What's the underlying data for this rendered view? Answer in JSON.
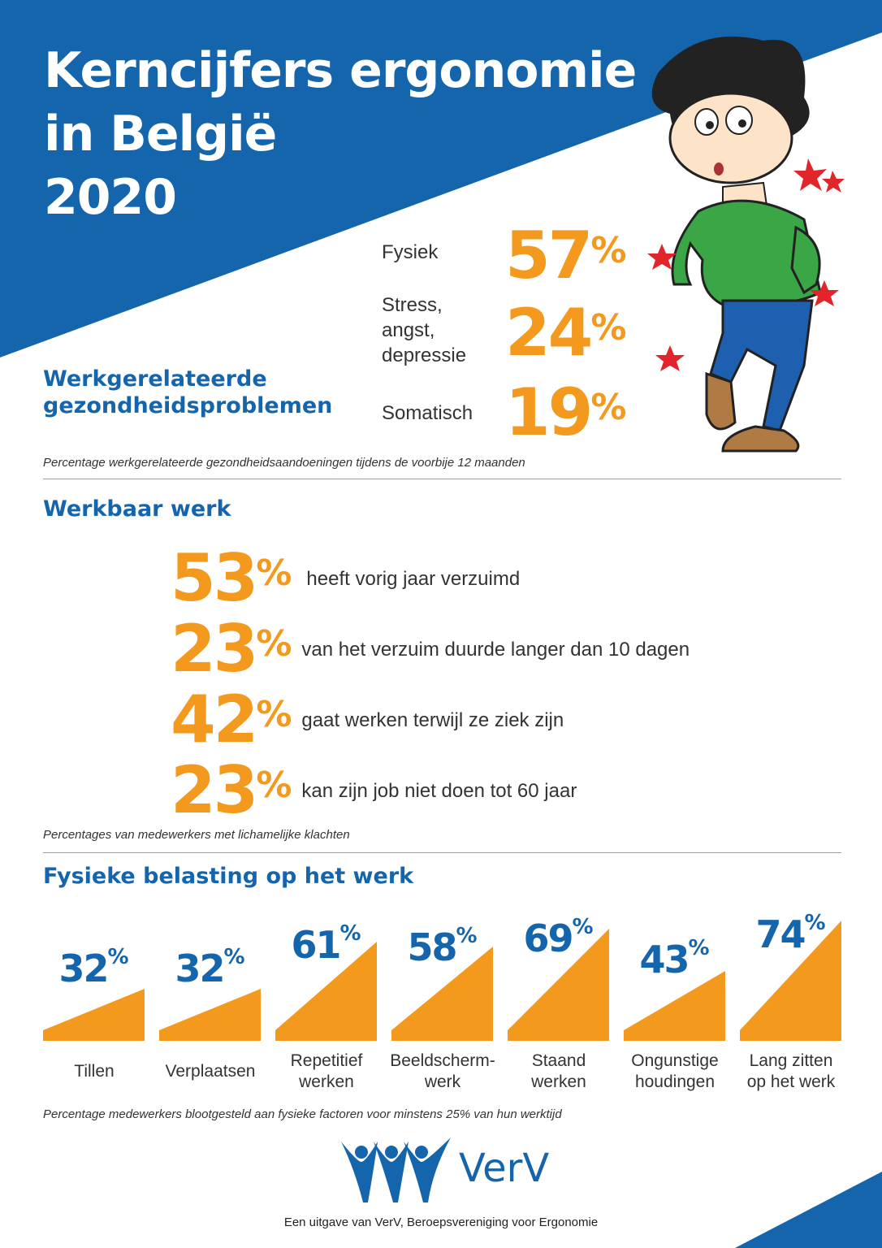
{
  "header": {
    "title_lines": [
      "Kerncijfers ergonomie",
      "in België",
      "2020"
    ]
  },
  "colors": {
    "blue": "#1565ad",
    "orange": "#f39a1e"
  },
  "health_problems": {
    "heading_lines": [
      "Werkgerelateerde",
      "gezondheidsproblemen"
    ],
    "items": [
      {
        "label": "Fysiek",
        "value": "57",
        "unit": "%"
      },
      {
        "label": "Stress, angst, depressie",
        "label_lines": [
          "Stress,",
          "angst,",
          "depressie"
        ],
        "value": "24",
        "unit": "%"
      },
      {
        "label": "Somatisch",
        "value": "19",
        "unit": "%"
      }
    ],
    "note": "Percentage werkgerelateerde gezondheidsaandoeningen tijdens de voorbije 12 maanden"
  },
  "workable_work": {
    "heading": "Werkbaar werk",
    "items": [
      {
        "value": "53",
        "unit": "%",
        "text": "heeft vorig jaar verzuimd"
      },
      {
        "value": "23",
        "unit": "%",
        "text": "van het verzuim duurde langer dan 10 dagen"
      },
      {
        "value": "42",
        "unit": "%",
        "text": "gaat werken terwijl ze ziek zijn"
      },
      {
        "value": "23",
        "unit": "%",
        "text": "kan zijn job niet doen tot 60 jaar"
      }
    ],
    "note": "Percentages van medewerkers met lichamelijke klachten"
  },
  "physical_load": {
    "heading": "Fysieke belasting op het werk",
    "note": "Percentage medewerkers blootgesteld aan fysieke factoren voor minstens 25% van hun werktijd"
  },
  "chart_data": {
    "type": "bar",
    "categories": [
      "Tillen",
      "Verplaatsen",
      "Repetitief werken",
      "Beeldscherm-werk",
      "Staand werken",
      "Ongunstige houdingen",
      "Lang zitten op het werk"
    ],
    "category_lines": [
      [
        "Tillen"
      ],
      [
        "Verplaatsen"
      ],
      [
        "Repetitief",
        "werken"
      ],
      [
        "Beeldscherm-",
        "werk"
      ],
      [
        "Staand",
        "werken"
      ],
      [
        "Ongunstige",
        "houdingen"
      ],
      [
        "Lang zitten",
        "op het werk"
      ]
    ],
    "values": [
      32,
      32,
      61,
      58,
      69,
      43,
      74
    ],
    "unit": "%",
    "ylim": [
      0,
      100
    ]
  },
  "footer": {
    "logo_text": "VerV",
    "credit": "Een uitgave van VerV, Beroepsvereniging voor Ergonomie"
  }
}
